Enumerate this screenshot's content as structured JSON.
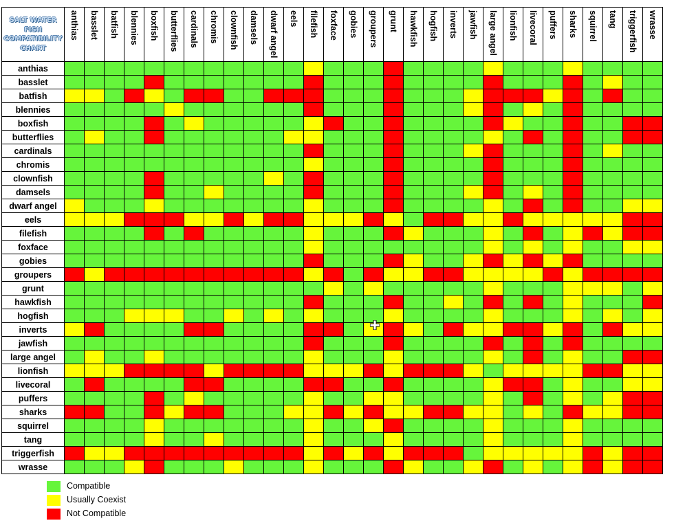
{
  "title_lines": [
    "SALT WATER",
    "FISH",
    "COMPATIBILITY",
    "CHART"
  ],
  "species": [
    "anthias",
    "basslet",
    "batfish",
    "blennies",
    "boxfish",
    "butterflies",
    "cardinals",
    "chromis",
    "clownfish",
    "damsels",
    "dwarf angel",
    "eels",
    "filefish",
    "foxface",
    "gobies",
    "groupers",
    "grunt",
    "hawkfish",
    "hogfish",
    "inverts",
    "jawfish",
    "large angel",
    "lionfish",
    "livecoral",
    "puffers",
    "sharks",
    "squirrel",
    "tang",
    "triggerfish",
    "wrasse"
  ],
  "colors": {
    "compatible": "#66f53b",
    "coexist": "#ffff00",
    "not_compatible": "#ff0000"
  },
  "legend": [
    {
      "code": "G",
      "label": "Compatible"
    },
    {
      "code": "Y",
      "label": "Usually Coexist"
    },
    {
      "code": "R",
      "label": "Not Compatible"
    }
  ],
  "grid": [
    "GGGGGGGGGGGGYGGGRGGGGYGGGYGGGG",
    "GGGGRGGGGGGGRGGGRGGGGRGGGRGYGG",
    "YYGRYGRRGGRRRGGGRGGGYRRRYRGRGG",
    "GGGGGYGGGGGGRGGGRGGGYRGYGRGGGG",
    "GGGGRGYGGGGGYRGGRGGGGRYGGRGGRR",
    "GYGGRGGGGGGYYGGGRGGGGYGRGRGGRR",
    "GGGGGGGGGGGGRGGGRGGGYRGGGRGYGG",
    "GGGGGGGGGGGGYGGGRGGGGRGGGRGGGG",
    "GGGGRGGGGGYGRGGGRGGGGRGGGRGGGG",
    "GGGGRGGYGGGGRGGGRGGGYRGYGRGGGG",
    "YGGGYGGGGGGGYGGGRGGGGYGRGRGGYY",
    "YYYRRRYYRYRRYYYRYGRRYYRYYYYYRR",
    "GGGGRGRGGGGGYGGGRYGGGYGRGYRYRR",
    "GGGGGGGGGGGGYGGGGGGGGYGYGYGGYY",
    "GGGGGGGGGGGGRGGGRYGGYRYRYRGGGG",
    "RYRRRRRRRRRRYRGRYYRRYYYYRYRRRR",
    "GGGGGGGGGGGGGYGYGGGGGYGGGYYYGY",
    "GGGGGGGGGGGGRGGGRGGYGRGRGYGGGR",
    "GGGYYYGGYGYGYGGGYGGGGYGGGYGYGY",
    "YRGGGGRRGGGGRRGYRYGRYYRRYRGRYY",
    "GGGGGGGGGGGGRGGGRGGGGRGRGRGGGG",
    "GYGGYGGGGGGGYGGGYGGGGYGRGYGGRR",
    "YYYRRRRYRRRRYYYRYRRRYGYYYYRRYY",
    "GRGGGGRRGGGGRRGGRGGGGYRRGYGGYY",
    "GGGGRGYGGGGGYGGYYGGGGYGRGYGYRR",
    "RRGGRYRRGGGYYRYRYYRRYYGYGRYYRR",
    "GGGGYGGGGGGGYGGYRGGGGYGGGYGGGG",
    "GGGGYGGYGGGGYGGGYGGGGYGGGYGGGG",
    "RYYRRRRRRRRRYRYRYRRRGYYYYYRYRR",
    "GGGYRGGGYGGGYGGGRYGGYRGYGYRYRR"
  ]
}
